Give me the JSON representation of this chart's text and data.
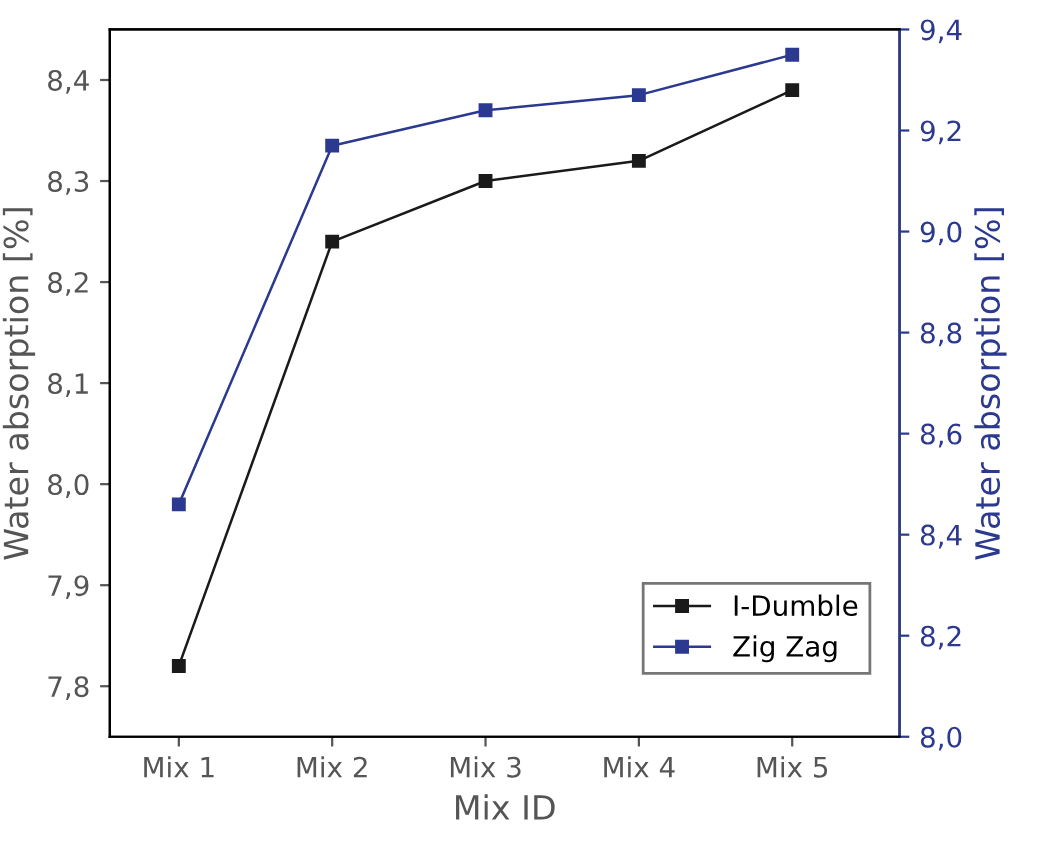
{
  "chart_data": {
    "type": "line",
    "xlabel": "Mix ID",
    "ylabel": "Water absorption [%]",
    "y2label": "Water absorption [%]",
    "categories": [
      "Mix 1",
      "Mix 2",
      "Mix 3",
      "Mix 4",
      "Mix 5"
    ],
    "series": [
      {
        "name": "I-Dumble",
        "color": "#1a1a1a",
        "values": [
          7.82,
          8.24,
          8.3,
          8.32,
          8.39
        ]
      },
      {
        "name": "Zig Zag",
        "color": "#2b3990",
        "axis": "y2",
        "values": [
          8.46,
          9.17,
          9.24,
          9.27,
          9.35
        ]
      }
    ],
    "ylim": [
      7.75,
      8.45
    ],
    "yticks": [
      {
        "value": 7.8,
        "label": "7,8"
      },
      {
        "value": 7.9,
        "label": "7,9"
      },
      {
        "value": 8.0,
        "label": "8,0"
      },
      {
        "value": 8.1,
        "label": "8,1"
      },
      {
        "value": 8.2,
        "label": "8,2"
      },
      {
        "value": 8.3,
        "label": "8,3"
      },
      {
        "value": 8.4,
        "label": "8,4"
      }
    ],
    "y2lim": [
      8.0,
      9.4
    ],
    "y2ticks": [
      {
        "value": 8.0,
        "label": "8,0"
      },
      {
        "value": 8.2,
        "label": "8,2"
      },
      {
        "value": 8.4,
        "label": "8,4"
      },
      {
        "value": 8.6,
        "label": "8,6"
      },
      {
        "value": 8.8,
        "label": "8,8"
      },
      {
        "value": 9.0,
        "label": "9,0"
      },
      {
        "value": 9.2,
        "label": "9,2"
      },
      {
        "value": 9.4,
        "label": "9,4"
      }
    ],
    "marker": "square",
    "line_style": "solid",
    "grid": false,
    "legend": "bottom right"
  }
}
